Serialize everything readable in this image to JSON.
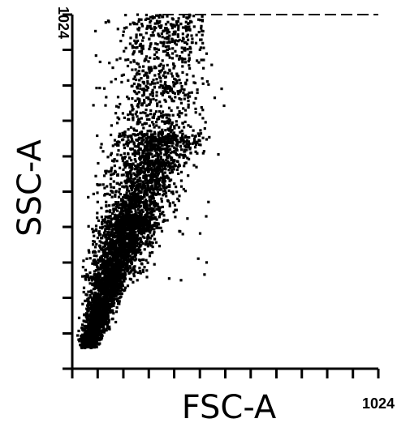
{
  "chart_data": {
    "type": "scatter",
    "title": "",
    "xlabel": "FSC-A",
    "ylabel": "SSC-A",
    "xlim": [
      0,
      1024
    ],
    "ylim": [
      0,
      1024
    ],
    "x_max_label": "1024",
    "y_max_label": "1024",
    "x_ticks": [
      0,
      85,
      171,
      256,
      341,
      427,
      512,
      597,
      683,
      768,
      853,
      939,
      1024
    ],
    "y_ticks": [
      0,
      102,
      205,
      307,
      410,
      512,
      614,
      717,
      819,
      922,
      1024
    ],
    "grid": false,
    "legend": "none",
    "point_color": "#000000",
    "series": [
      {
        "population": "main cell cluster (dense diagonal band)",
        "points_approx": 5200,
        "fsc_range": [
          10,
          540
        ],
        "ssc_range": [
          10,
          1024
        ],
        "centroid": [
          270,
          480
        ],
        "trend": "SSC rises steeply with FSC; narrow band at low values, widening and sparser above SSC≈700"
      }
    ]
  }
}
